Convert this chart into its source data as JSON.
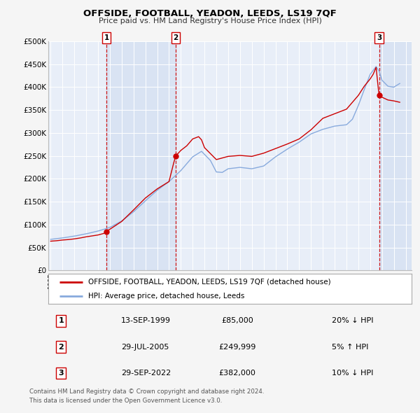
{
  "title": "OFFSIDE, FOOTBALL, YEADON, LEEDS, LS19 7QF",
  "subtitle": "Price paid vs. HM Land Registry's House Price Index (HPI)",
  "legend_line1": "OFFSIDE, FOOTBALL, YEADON, LEEDS, LS19 7QF (detached house)",
  "legend_line2": "HPI: Average price, detached house, Leeds",
  "footer_line1": "Contains HM Land Registry data © Crown copyright and database right 2024.",
  "footer_line2": "This data is licensed under the Open Government Licence v3.0.",
  "sale_color": "#cc0000",
  "hpi_color": "#88aadd",
  "background_color": "#f5f5f5",
  "plot_bg_color": "#e8eef8",
  "shade_color": "#d0ddf0",
  "ylim": [
    0,
    500000
  ],
  "ytick_labels": [
    "£0",
    "£50K",
    "£100K",
    "£150K",
    "£200K",
    "£250K",
    "£300K",
    "£350K",
    "£400K",
    "£450K",
    "£500K"
  ],
  "ytick_values": [
    0,
    50000,
    100000,
    150000,
    200000,
    250000,
    300000,
    350000,
    400000,
    450000,
    500000
  ],
  "xmin": 1994.8,
  "xmax": 2025.5,
  "markers": [
    {
      "label": "1",
      "x": 1999.71,
      "y_sale": 85000,
      "date": "13-SEP-1999",
      "price": "£85,000",
      "pct": "20% ↓ HPI"
    },
    {
      "label": "2",
      "x": 2005.57,
      "y_sale": 249999,
      "date": "29-JUL-2005",
      "price": "£249,999",
      "pct": "5% ↑ HPI"
    },
    {
      "label": "3",
      "x": 2022.75,
      "y_sale": 382000,
      "date": "29-SEP-2022",
      "price": "£382,000",
      "pct": "10% ↓ HPI"
    }
  ],
  "hpi_data_x": [
    1995.0,
    1995.083,
    1995.167,
    1995.25,
    1995.333,
    1995.417,
    1995.5,
    1995.583,
    1995.667,
    1995.75,
    1995.833,
    1995.917,
    1996.0,
    1996.083,
    1996.167,
    1996.25,
    1996.333,
    1996.417,
    1996.5,
    1996.583,
    1996.667,
    1996.75,
    1996.833,
    1996.917,
    1997.0,
    1997.083,
    1997.167,
    1997.25,
    1997.333,
    1997.417,
    1997.5,
    1997.583,
    1997.667,
    1997.75,
    1997.833,
    1997.917,
    1998.0,
    1998.083,
    1998.167,
    1998.25,
    1998.333,
    1998.417,
    1998.5,
    1998.583,
    1998.667,
    1998.75,
    1998.833,
    1998.917,
    1999.0,
    1999.083,
    1999.167,
    1999.25,
    1999.333,
    1999.417,
    1999.5,
    1999.583,
    1999.667,
    1999.75,
    1999.833,
    1999.917,
    2000.0,
    2000.083,
    2000.167,
    2000.25,
    2000.333,
    2000.417,
    2000.5,
    2000.583,
    2000.667,
    2000.75,
    2000.833,
    2000.917,
    2001.0,
    2001.083,
    2001.167,
    2001.25,
    2001.333,
    2001.417,
    2001.5,
    2001.583,
    2001.667,
    2001.75,
    2001.833,
    2001.917,
    2002.0,
    2002.083,
    2002.167,
    2002.25,
    2002.333,
    2002.417,
    2002.5,
    2002.583,
    2002.667,
    2002.75,
    2002.833,
    2002.917,
    2003.0,
    2003.083,
    2003.167,
    2003.25,
    2003.333,
    2003.417,
    2003.5,
    2003.583,
    2003.667,
    2003.75,
    2003.833,
    2003.917,
    2004.0,
    2004.083,
    2004.167,
    2004.25,
    2004.333,
    2004.417,
    2004.5,
    2004.583,
    2004.667,
    2004.75,
    2004.833,
    2004.917,
    2005.0,
    2005.083,
    2005.167,
    2005.25,
    2005.333,
    2005.417,
    2005.5,
    2005.583,
    2005.667,
    2005.75,
    2005.833,
    2005.917,
    2006.0,
    2006.083,
    2006.167,
    2006.25,
    2006.333,
    2006.417,
    2006.5,
    2006.583,
    2006.667,
    2006.75,
    2006.833,
    2006.917,
    2007.0,
    2007.083,
    2007.167,
    2007.25,
    2007.333,
    2007.417,
    2007.5,
    2007.583,
    2007.667,
    2007.75,
    2007.833,
    2007.917,
    2008.0,
    2008.083,
    2008.167,
    2008.25,
    2008.333,
    2008.417,
    2008.5,
    2008.583,
    2008.667,
    2008.75,
    2008.833,
    2008.917,
    2009.0,
    2009.083,
    2009.167,
    2009.25,
    2009.333,
    2009.417,
    2009.5,
    2009.583,
    2009.667,
    2009.75,
    2009.833,
    2009.917,
    2010.0,
    2010.083,
    2010.167,
    2010.25,
    2010.333,
    2010.417,
    2010.5,
    2010.583,
    2010.667,
    2010.75,
    2010.833,
    2010.917,
    2011.0,
    2011.083,
    2011.167,
    2011.25,
    2011.333,
    2011.417,
    2011.5,
    2011.583,
    2011.667,
    2011.75,
    2011.833,
    2011.917,
    2012.0,
    2012.083,
    2012.167,
    2012.25,
    2012.333,
    2012.417,
    2012.5,
    2012.583,
    2012.667,
    2012.75,
    2012.833,
    2012.917,
    2013.0,
    2013.083,
    2013.167,
    2013.25,
    2013.333,
    2013.417,
    2013.5,
    2013.583,
    2013.667,
    2013.75,
    2013.833,
    2013.917,
    2014.0,
    2014.083,
    2014.167,
    2014.25,
    2014.333,
    2014.417,
    2014.5,
    2014.583,
    2014.667,
    2014.75,
    2014.833,
    2014.917,
    2015.0,
    2015.083,
    2015.167,
    2015.25,
    2015.333,
    2015.417,
    2015.5,
    2015.583,
    2015.667,
    2015.75,
    2015.833,
    2015.917,
    2016.0,
    2016.083,
    2016.167,
    2016.25,
    2016.333,
    2016.417,
    2016.5,
    2016.583,
    2016.667,
    2016.75,
    2016.833,
    2016.917,
    2017.0,
    2017.083,
    2017.167,
    2017.25,
    2017.333,
    2017.417,
    2017.5,
    2017.583,
    2017.667,
    2017.75,
    2017.833,
    2017.917,
    2018.0,
    2018.083,
    2018.167,
    2018.25,
    2018.333,
    2018.417,
    2018.5,
    2018.583,
    2018.667,
    2018.75,
    2018.833,
    2018.917,
    2019.0,
    2019.083,
    2019.167,
    2019.25,
    2019.333,
    2019.417,
    2019.5,
    2019.583,
    2019.667,
    2019.75,
    2019.833,
    2019.917,
    2020.0,
    2020.083,
    2020.167,
    2020.25,
    2020.333,
    2020.417,
    2020.5,
    2020.583,
    2020.667,
    2020.75,
    2020.833,
    2020.917,
    2021.0,
    2021.083,
    2021.167,
    2021.25,
    2021.333,
    2021.417,
    2021.5,
    2021.583,
    2021.667,
    2021.75,
    2021.833,
    2021.917,
    2022.0,
    2022.083,
    2022.167,
    2022.25,
    2022.333,
    2022.417,
    2022.5,
    2022.583,
    2022.667,
    2022.75,
    2022.833,
    2022.917,
    2023.0,
    2023.083,
    2023.167,
    2023.25,
    2023.333,
    2023.417,
    2023.5,
    2023.583,
    2023.667,
    2023.75,
    2023.833,
    2023.917,
    2024.0,
    2024.083,
    2024.167,
    2024.25,
    2024.333,
    2024.417,
    2024.5
  ],
  "sale_data_x": [
    1995.0,
    1995.25,
    1995.5,
    1995.75,
    1996.0,
    1996.25,
    1996.5,
    1996.75,
    1997.0,
    1997.25,
    1997.5,
    1997.75,
    1998.0,
    1998.25,
    1998.5,
    1998.75,
    1999.0,
    1999.25,
    1999.5,
    1999.71,
    2000.0,
    2000.5,
    2001.0,
    2001.5,
    2002.0,
    2002.5,
    2003.0,
    2003.5,
    2004.0,
    2004.5,
    2005.0,
    2005.4,
    2005.57,
    2006.0,
    2006.25,
    2006.5,
    2006.75,
    2007.0,
    2007.25,
    2007.5,
    2007.75,
    2008.0,
    2008.5,
    2009.0,
    2009.5,
    2010.0,
    2010.5,
    2011.0,
    2011.5,
    2012.0,
    2012.5,
    2013.0,
    2013.5,
    2014.0,
    2014.5,
    2015.0,
    2015.5,
    2016.0,
    2016.5,
    2017.0,
    2017.5,
    2018.0,
    2018.5,
    2019.0,
    2019.5,
    2020.0,
    2020.5,
    2021.0,
    2021.25,
    2021.5,
    2021.75,
    2022.0,
    2022.25,
    2022.5,
    2022.75,
    2023.0,
    2023.25,
    2023.5,
    2023.75,
    2024.0,
    2024.25,
    2024.5
  ]
}
